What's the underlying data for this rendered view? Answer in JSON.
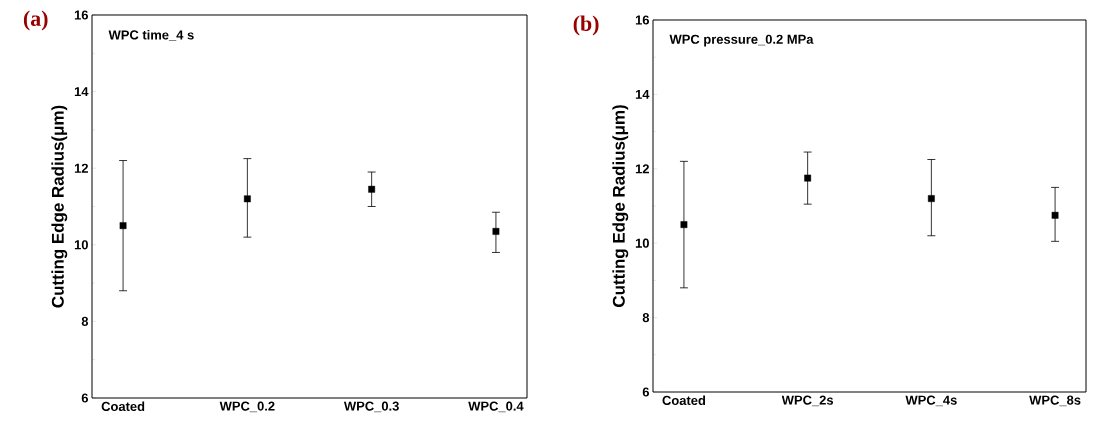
{
  "chart_data": [
    {
      "type": "scatter",
      "title": "(a)",
      "ylabel": "Cutting Edge Radius(μm)",
      "annotations": [
        "WPC time_4 s"
      ],
      "categories": [
        "Coated",
        "WPC_0.2",
        "WPC_0.3",
        "WPC_0.4"
      ],
      "values": [
        10.5,
        11.2,
        11.45,
        10.35
      ],
      "errors": [
        [
          8.8,
          12.2
        ],
        [
          10.2,
          12.25
        ],
        [
          11.0,
          11.9
        ],
        [
          9.8,
          10.85
        ]
      ],
      "color": "#000000",
      "marker": "square",
      "ylim": [
        6,
        16
      ],
      "yticks": [
        6,
        8,
        10,
        12,
        14,
        16
      ],
      "grid": false,
      "legend": false
    },
    {
      "type": "scatter",
      "title": "(b)",
      "ylabel": "Cutting Edge Radius(μm)",
      "annotations": [
        "WPC pressure_0.2 MPa"
      ],
      "categories": [
        "Coated",
        "WPC_2s",
        "WPC_4s",
        "WPC_8s"
      ],
      "values": [
        10.5,
        11.75,
        11.2,
        10.75
      ],
      "errors": [
        [
          8.8,
          12.2
        ],
        [
          11.05,
          12.45
        ],
        [
          10.2,
          12.25
        ],
        [
          10.05,
          11.5
        ]
      ],
      "color": "#000000",
      "marker": "square",
      "ylim": [
        6,
        16
      ],
      "yticks": [
        6,
        8,
        10,
        12,
        14,
        16
      ],
      "grid": false,
      "legend": false
    }
  ]
}
